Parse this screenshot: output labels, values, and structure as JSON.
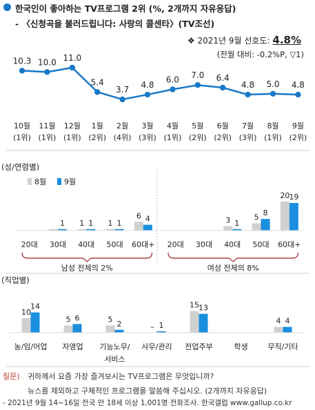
{
  "title": "한국인이 좋아하는 TV프로그램 2위 (%, 2개까지 자유응답)",
  "subtitle": "- 〈신청곡을 불러드립니다: 사랑의 콜센타〉(TV조선)",
  "score": {
    "prefix": "❖ 2021년 9월 선호도:",
    "value": "4.8%",
    "change": "(전월 대비: -0.2%P, ▽1)"
  },
  "colors": {
    "line": "#1a78c8",
    "prev": "#d0d0d0",
    "curr": "#1a8fe0",
    "bracket": "#a94442"
  },
  "chart_data": [
    {
      "type": "line",
      "x": [
        "10월",
        "11월",
        "12월",
        "1월",
        "2월",
        "3월",
        "4월",
        "5월",
        "6월",
        "7월",
        "8월",
        "9월"
      ],
      "ranks": [
        "(1위)",
        "(1위)",
        "(1위)",
        "(2위)",
        "(4위)",
        "(3위)",
        "(1위)",
        "(2위)",
        "(2위)",
        "(3위)",
        "(1위)",
        "(2위)"
      ],
      "values": [
        10.3,
        10.0,
        11.0,
        5.4,
        3.7,
        4.8,
        6.0,
        7.0,
        6.4,
        4.8,
        5.0,
        4.8
      ]
    },
    {
      "type": "bar",
      "title": "(성/연령별)",
      "legend": [
        "8월",
        "9월"
      ],
      "groups": [
        {
          "label": "남성 전체의 2%",
          "categories": [
            "20대",
            "30대",
            "40대",
            "50대",
            "60대+"
          ],
          "prev": [
            0,
            1,
            1,
            1,
            6
          ],
          "curr": [
            0,
            1,
            1,
            1,
            4
          ],
          "prev_labels": [
            "",
            "",
            "1",
            "1",
            "6"
          ],
          "curr_labels": [
            "",
            "1",
            "1",
            "1",
            "4"
          ]
        },
        {
          "label": "여성 전체의 8%",
          "categories": [
            "20대",
            "30대",
            "40대",
            "50대",
            "60대+"
          ],
          "prev": [
            0,
            0,
            3,
            5,
            20
          ],
          "curr": [
            0,
            0,
            1,
            8,
            19
          ],
          "prev_labels": [
            "",
            "",
            "3",
            "5",
            "20"
          ],
          "curr_labels": [
            "",
            "",
            "1",
            "8",
            "19"
          ]
        }
      ]
    },
    {
      "type": "bar",
      "title": "(직업별)",
      "categories": [
        "농/임/어업",
        "자영업",
        "기능노무/서비스",
        "사무/관리",
        "전업주부",
        "학생",
        "무직/기타"
      ],
      "prev": [
        10,
        5,
        5,
        0,
        15,
        0,
        4
      ],
      "curr": [
        14,
        6,
        2,
        1,
        13,
        0,
        4
      ],
      "prev_labels": [
        "10",
        "5",
        "5",
        "–",
        "15",
        "",
        "4"
      ],
      "curr_labels": [
        "14",
        "6",
        "2",
        "1",
        "13",
        "",
        "4"
      ]
    }
  ],
  "question": {
    "label": "질문)",
    "line1": "귀하께서 요즘 가장 즐겨보시는 TV프로그램은 무엇입니까?",
    "line2": "뉴스를 제외하고 구체적인 프로그램을 말씀해 주십시오. (2개까지 자유응답)"
  },
  "footer": "- 2021년 9월 14~16일 전국 만 18세 이상 1,001명 전화조사. 한국갤럽 www.gallup.co.kr"
}
